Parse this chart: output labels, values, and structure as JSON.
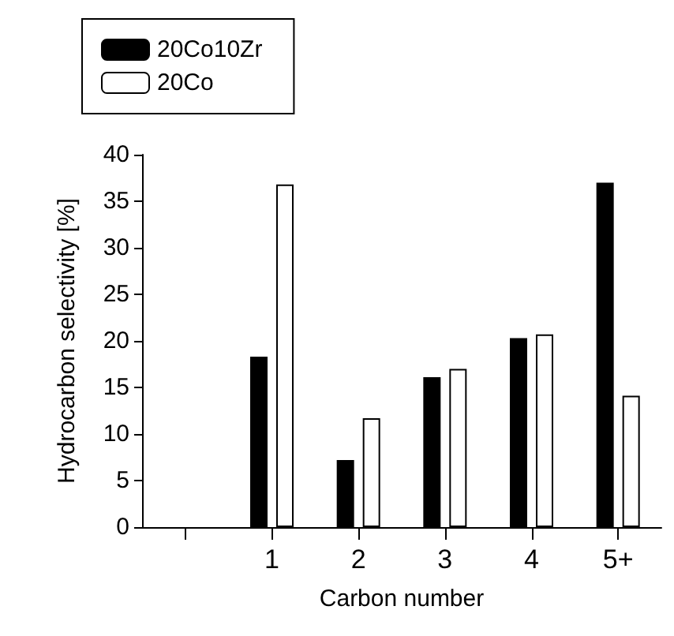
{
  "chart_data": {
    "type": "bar",
    "xlabel": "Carbon number",
    "ylabel": "Hydrocarbon selectivity [%]",
    "categories": [
      null,
      "1",
      "2",
      "3",
      "4",
      "5+"
    ],
    "series": [
      {
        "name": "20Co10Zr",
        "color": "#000000",
        "values": [
          null,
          18.3,
          7.2,
          16.1,
          20.3,
          37
        ]
      },
      {
        "name": "20Co",
        "color": "#ffffff",
        "values": [
          null,
          36.8,
          11.7,
          17.0,
          20.7,
          14.1
        ]
      }
    ],
    "ylim": [
      0,
      40
    ],
    "yticks": [
      0,
      5,
      10,
      15,
      20,
      25,
      30,
      35,
      40
    ],
    "grid": false,
    "legend": "top left"
  }
}
